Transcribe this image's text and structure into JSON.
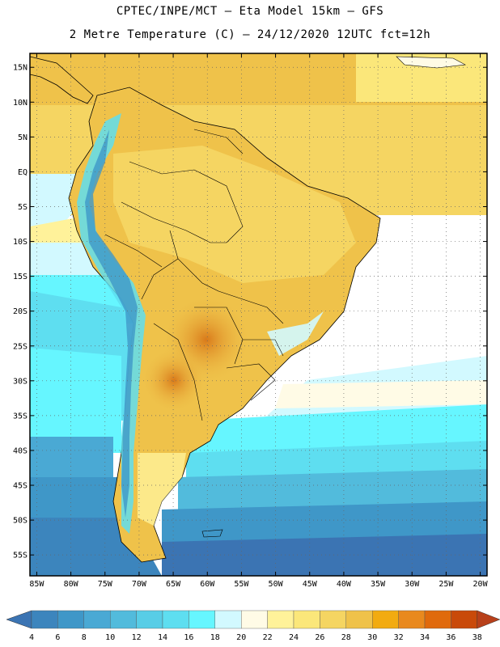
{
  "header": {
    "line1": "CPTEC/INPE/MCT – Eta Model 15km – GFS",
    "line2": "2 Metre Temperature (C) – 24/12/2020 12UTC fct=12h"
  },
  "map_axes": {
    "lat_labels": [
      "15N",
      "10N",
      "5N",
      "EQ",
      "5S",
      "10S",
      "15S",
      "20S",
      "25S",
      "30S",
      "35S",
      "40S",
      "45S",
      "50S",
      "55S"
    ],
    "lon_labels": [
      "85W",
      "80W",
      "75W",
      "70W",
      "65W",
      "60W",
      "55W",
      "50W",
      "45W",
      "40W",
      "35W",
      "30W",
      "25W",
      "20W"
    ],
    "lat_range": [
      17,
      -58
    ],
    "lon_range": [
      -86,
      -19
    ],
    "grid": true
  },
  "colorbar": {
    "ticks": [
      "4",
      "6",
      "8",
      "10",
      "12",
      "14",
      "16",
      "18",
      "20",
      "22",
      "24",
      "26",
      "28",
      "30",
      "32",
      "34",
      "36",
      "38"
    ],
    "colors": [
      "#3b74b3",
      "#3c85bd",
      "#3f97c8",
      "#4aa9d4",
      "#52bbdc",
      "#58cde6",
      "#5edef0",
      "#66f6ff",
      "#d2f9ff",
      "#fffbe6",
      "#fff29a",
      "#fbe77a",
      "#f5d562",
      "#efc24a",
      "#f2ab10",
      "#e9891d",
      "#e06a0c",
      "#c94a0a",
      "#b8401a"
    ]
  }
}
